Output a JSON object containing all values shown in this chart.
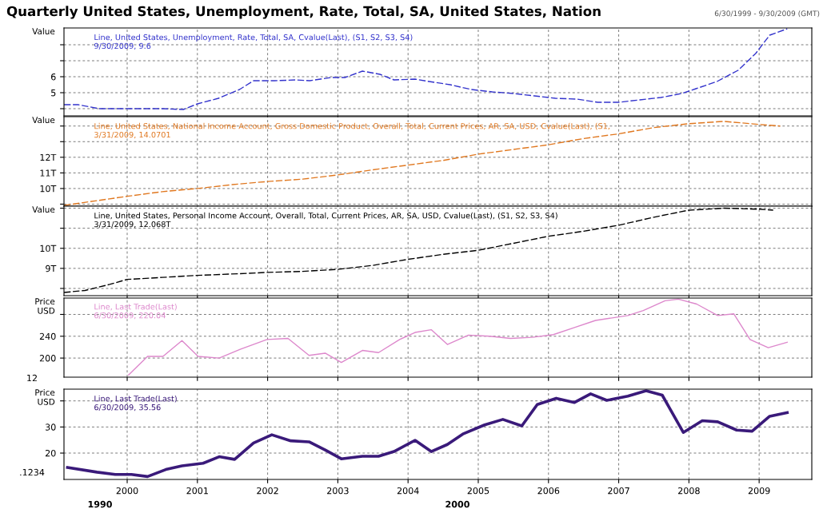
{
  "chart_data": [
    {
      "type": "line",
      "title": "Quarterly United States, Unemployment, Rate, Total, SA, United States, Nation",
      "subtitle": "6/30/1999 - 9/30/2009 (GMT)",
      "ylabel": "Value",
      "series": [
        {
          "name": "Line, United States, Unemployment, Rate, Total, SA, Cvalue(Last), (S1, S2, S3, S4)\n9/30/2009, 9.6",
          "color": "#3333cc",
          "x": [
            1999.1,
            1999.3,
            1999.6,
            2000.0,
            2000.5,
            2000.8,
            2001.0,
            2001.3,
            2001.6,
            2001.8,
            2002.1,
            2002.4,
            2002.6,
            2002.9,
            2003.1,
            2003.35,
            2003.6,
            2003.8,
            2004.1,
            2004.3,
            2004.6,
            2004.9,
            2005.2,
            2005.5,
            2005.8,
            2006.1,
            2006.4,
            2006.7,
            2007.0,
            2007.3,
            2007.6,
            2007.9,
            2008.1,
            2008.4,
            2008.7,
            2008.95,
            2009.15,
            2009.4
          ],
          "values": [
            4.25,
            4.25,
            4.0,
            4.0,
            4.0,
            3.95,
            4.3,
            4.65,
            5.2,
            5.75,
            5.75,
            5.8,
            5.75,
            5.95,
            5.95,
            6.35,
            6.15,
            5.8,
            5.85,
            5.7,
            5.5,
            5.2,
            5.05,
            4.95,
            4.8,
            4.65,
            4.6,
            4.4,
            4.4,
            4.55,
            4.7,
            4.95,
            5.25,
            5.7,
            6.4,
            7.45,
            8.6,
            9.0
          ]
        }
      ],
      "xlim": [
        1999.1,
        2009.75
      ],
      "xticks": [
        2000,
        2001,
        2002,
        2003,
        2004,
        2005,
        2006,
        2007,
        2008,
        2009
      ],
      "ylim": [
        3.55,
        9.05
      ],
      "yticks": [
        {
          "value": 4,
          "label": null
        },
        5,
        6,
        {
          "value": 7,
          "label": null
        },
        {
          "value": 8,
          "label": null
        }
      ],
      "grid": true,
      "tick_labels": "y",
      "line_style": "dashed"
    },
    {
      "type": "line",
      "ylabel": "Value",
      "series": [
        {
          "name": "Line, United States, National Income Account, Gross Domestic Product, Overall, Total, Current Prices, AR, SA, USD, Cvalue(Last), (S1,\n3/31/2009, 14.0701",
          "color": "#e07820",
          "x": [
            1999.1,
            2000.0,
            2000.5,
            2001.0,
            2001.5,
            2002.0,
            2002.5,
            2003.0,
            2003.5,
            2004.0,
            2004.5,
            2005.0,
            2005.5,
            2006.0,
            2006.5,
            2007.0,
            2007.5,
            2008.0,
            2008.5,
            2009.0,
            2009.3
          ],
          "values": [
            8.92,
            9.5,
            9.8,
            10.0,
            10.25,
            10.45,
            10.6,
            10.87,
            11.2,
            11.5,
            11.8,
            12.2,
            12.5,
            12.8,
            13.2,
            13.5,
            13.9,
            14.15,
            14.3,
            14.1,
            14.0
          ]
        }
      ],
      "xlim": [
        1999.1,
        2009.75
      ],
      "xticks": [
        2000,
        2001,
        2002,
        2003,
        2004,
        2005,
        2006,
        2007,
        2008,
        2009
      ],
      "ylim": [
        8.87,
        14.6
      ],
      "yticks": [
        {
          "value": 9,
          "label": null
        },
        {
          "value": 10,
          "label": "10T"
        },
        {
          "value": 11,
          "label": "11T"
        },
        {
          "value": 12,
          "label": "12T"
        },
        {
          "value": 13,
          "label": null
        },
        {
          "value": 14,
          "label": null
        }
      ],
      "grid": true,
      "tick_labels": "y",
      "line_style": "dashed"
    },
    {
      "type": "line",
      "ylabel": "Value",
      "series": [
        {
          "name": "Line, United States, Personal Income Account, Overall, Total, Current Prices, AR, SA, USD, Cvalue(Last), (S1, S2, S3, S4)\n3/31/2009, 12.068T",
          "color": "#000000",
          "x": [
            1999.1,
            1999.4,
            1999.75,
            2000.0,
            2000.5,
            2001.0,
            2001.7,
            2002.0,
            2002.5,
            2003.0,
            2003.5,
            2004.0,
            2004.5,
            2005.0,
            2005.5,
            2006.0,
            2006.5,
            2007.0,
            2007.5,
            2008.0,
            2008.5,
            2009.0,
            2009.2
          ],
          "values": [
            7.8,
            7.9,
            8.2,
            8.45,
            8.55,
            8.65,
            8.75,
            8.8,
            8.85,
            8.95,
            9.15,
            9.45,
            9.7,
            9.9,
            10.25,
            10.6,
            10.85,
            11.15,
            11.55,
            11.9,
            12.0,
            11.95,
            11.9
          ]
        }
      ],
      "xlim": [
        1999.1,
        2009.75
      ],
      "xticks": [
        2000,
        2001,
        2002,
        2003,
        2004,
        2005,
        2006,
        2007,
        2008,
        2009
      ],
      "ylim": [
        7.64,
        12.1
      ],
      "yticks": [
        {
          "value": 8,
          "label": null
        },
        {
          "value": 9,
          "label": "9T"
        },
        {
          "value": 10,
          "label": "10T"
        },
        {
          "value": 11,
          "label": null
        },
        {
          "value": 12,
          "label": null
        }
      ],
      "grid": true,
      "tick_labels": "y",
      "line_style": "dashed"
    },
    {
      "type": "line",
      "ylabel": "Price\nUSD",
      "series": [
        {
          "name": "Line, Last Trade(Last)\n6/30/2009, 220.04",
          "color": "#dd88cc",
          "x": [
            2000.02,
            2000.29,
            2000.51,
            2000.78,
            2001.01,
            2001.31,
            2001.61,
            2001.99,
            2002.29,
            2002.59,
            2002.82,
            2003.05,
            2003.35,
            2003.58,
            2003.88,
            2004.1,
            2004.33,
            2004.56,
            2004.86,
            2005.16,
            2005.46,
            2005.77,
            2006.07,
            2006.37,
            2006.67,
            2007.13,
            2007.35,
            2007.66,
            2007.85,
            2008.11,
            2008.41,
            2008.64,
            2008.87,
            2009.13,
            2009.4
          ],
          "values": [
            169,
            203,
            203,
            232,
            203,
            200,
            216,
            234,
            236,
            205,
            209,
            192,
            214,
            210,
            234,
            247,
            252,
            225,
            242,
            240,
            236,
            238,
            243,
            256,
            269,
            278,
            287,
            305,
            308,
            299,
            278,
            281,
            234,
            219,
            229
          ]
        }
      ],
      "xlim": [
        1999.1,
        2009.75
      ],
      "xticks": [
        2000,
        2001,
        2002,
        2003,
        2004,
        2005,
        2006,
        2007,
        2008,
        2009
      ],
      "ylim": [
        165,
        310
      ],
      "yticks": [
        200,
        240,
        {
          "value": 280,
          "label": null
        }
      ],
      "grid": true,
      "tick_labels": "y",
      "line_style": "solid"
    },
    {
      "type": "line",
      "ylabel": "Price\nUSD",
      "series": [
        {
          "name": "Line, Last Trade(Last)\n6/30/2009, 35.56",
          "color": "#3a1a7a",
          "x": [
            1999.15,
            1999.57,
            1999.83,
            2000.06,
            2000.29,
            2000.55,
            2000.78,
            2001.08,
            2001.31,
            2001.53,
            2001.8,
            2002.06,
            2002.33,
            2002.59,
            2002.82,
            2003.05,
            2003.35,
            2003.58,
            2003.8,
            2004.1,
            2004.33,
            2004.56,
            2004.78,
            2005.09,
            2005.35,
            2005.62,
            2005.84,
            2006.11,
            2006.37,
            2006.6,
            2006.83,
            2007.13,
            2007.39,
            2007.62,
            2007.92,
            2008.19,
            2008.41,
            2008.68,
            2008.9,
            2009.15,
            2009.4
          ],
          "values": [
            14.5,
            12.7,
            11.8,
            11.8,
            11.0,
            13.7,
            15.1,
            16.1,
            18.6,
            17.6,
            23.9,
            27.0,
            24.7,
            24.3,
            21.2,
            17.8,
            18.8,
            18.8,
            20.6,
            24.9,
            20.6,
            23.3,
            27.3,
            30.8,
            32.9,
            30.4,
            38.6,
            41.0,
            39.4,
            42.7,
            40.2,
            41.8,
            43.9,
            42.2,
            27.9,
            32.4,
            32.0,
            28.8,
            28.4,
            34.1,
            35.5
          ]
        }
      ],
      "xlim": [
        1999.1,
        2009.75
      ],
      "xticks": [
        2000,
        2001,
        2002,
        2003,
        2004,
        2005,
        2006,
        2007,
        2008,
        2009
      ],
      "ylim": [
        9.9,
        44.5
      ],
      "yticks": [
        20,
        30,
        {
          "value": 40,
          "label": null
        }
      ],
      "grid": true,
      "line_style": "solid",
      "annotations": [
        "1990",
        "2000",
        ".1234",
        "12"
      ]
    }
  ]
}
